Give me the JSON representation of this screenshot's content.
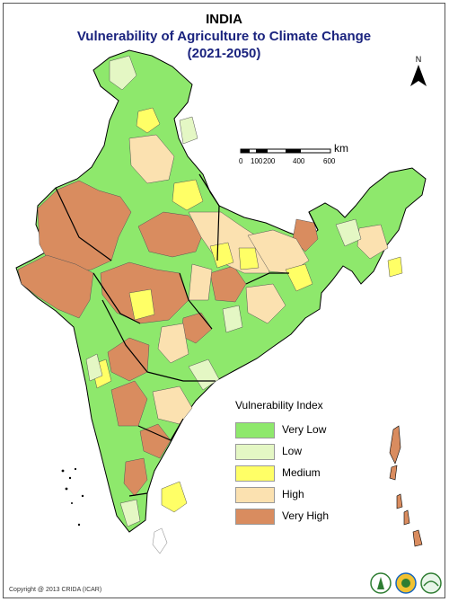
{
  "header": {
    "country": "INDIA",
    "title": "Vulnerability of Agriculture to Climate Change",
    "period": "(2021-2050)"
  },
  "north_arrow": {
    "label": "N"
  },
  "scale_bar": {
    "unit": "km",
    "ticks": [
      "0",
      "100",
      "200",
      "400",
      "600"
    ]
  },
  "legend": {
    "title": "Vulnerability Index",
    "items": [
      {
        "label": "Very Low",
        "color": "#8ee86c"
      },
      {
        "label": "Low",
        "color": "#e4f7c4"
      },
      {
        "label": "Medium",
        "color": "#ffff66"
      },
      {
        "label": "High",
        "color": "#fbe1b0"
      },
      {
        "label": "Very High",
        "color": "#d98c5f"
      }
    ]
  },
  "footer": {
    "copyright": "Copyright @ 2013 CRIDA (ICAR)"
  },
  "logos": [
    "crida-logo",
    "icar-logo",
    "nicra-logo"
  ]
}
